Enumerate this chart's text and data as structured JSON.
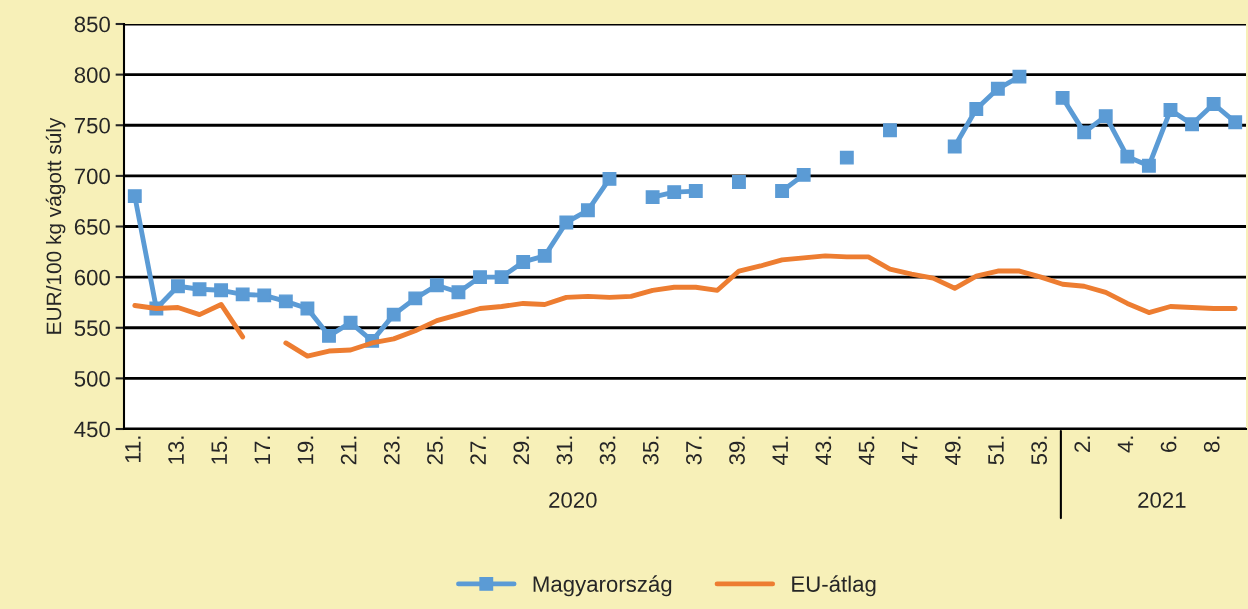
{
  "chart_data": {
    "type": "line",
    "ylabel": "EUR/100 kg vágott súly",
    "categories": [
      "11.",
      null,
      "13.",
      null,
      "15.",
      null,
      "17.",
      null,
      "19.",
      null,
      "21.",
      null,
      "23.",
      null,
      "25.",
      null,
      "27.",
      null,
      "29.",
      null,
      "31.",
      null,
      "33.",
      null,
      "35.",
      null,
      "37.",
      null,
      "39.",
      null,
      "41.",
      null,
      "43.",
      null,
      "45.",
      null,
      "47.",
      null,
      "49.",
      null,
      "51.",
      null,
      "53.",
      null,
      "2.",
      null,
      "4.",
      null,
      "6.",
      null,
      "8.",
      null
    ],
    "series": [
      {
        "name": "Magyarország",
        "color": "#5b9bd5",
        "marker": "square",
        "values": [
          680,
          569,
          591,
          588,
          587,
          583,
          582,
          576,
          569,
          542,
          555,
          537,
          563,
          579,
          592,
          585,
          600,
          600,
          615,
          621,
          654,
          666,
          697,
          null,
          679,
          684,
          685,
          null,
          694,
          null,
          685,
          701,
          null,
          718,
          null,
          745,
          null,
          null,
          729,
          766,
          786,
          798,
          null,
          777,
          743,
          759,
          719,
          710,
          765,
          751,
          771,
          753
        ]
      },
      {
        "name": "EU-átlag",
        "color": "#ed7d31",
        "marker": "none",
        "values": [
          572,
          569,
          570,
          563,
          573,
          541,
          null,
          535,
          522,
          527,
          528,
          535,
          539,
          547,
          557,
          563,
          569,
          571,
          574,
          573,
          580,
          581,
          580,
          581,
          587,
          590,
          590,
          587,
          606,
          611,
          617,
          619,
          621,
          620,
          620,
          608,
          603,
          599,
          589,
          601,
          606,
          606,
          600,
          593,
          591,
          585,
          574,
          565,
          571,
          570,
          569,
          569
        ]
      }
    ],
    "ylim": [
      450,
      850
    ],
    "yticks": [
      450,
      500,
      550,
      600,
      650,
      700,
      750,
      800,
      850
    ],
    "grid": "y",
    "legend": "bottom",
    "line_style": "solid",
    "annotations": [
      "2020",
      "2021"
    ]
  }
}
